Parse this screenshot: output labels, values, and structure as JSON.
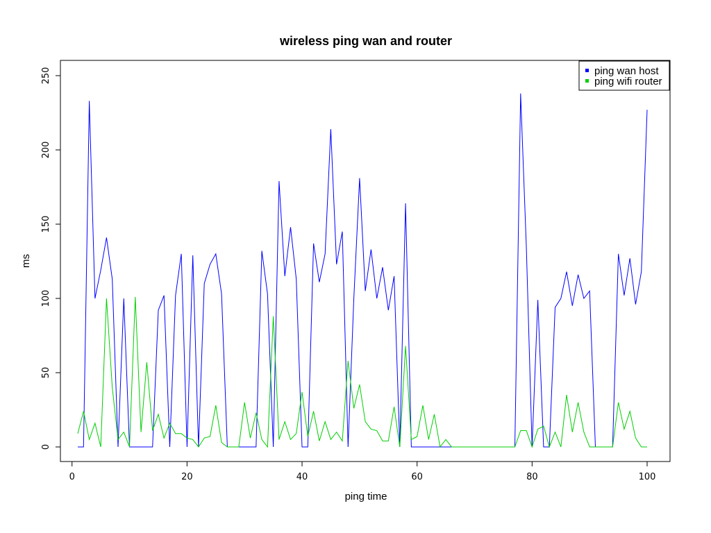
{
  "chart_data": {
    "type": "line",
    "title": "wireless ping wan and router",
    "xlabel": "ping time",
    "ylabel": "ms",
    "xlim": [
      1,
      100
    ],
    "ylim": [
      0,
      250
    ],
    "x_ticks": [
      0,
      20,
      40,
      60,
      80,
      100
    ],
    "y_ticks": [
      0,
      50,
      100,
      150,
      200,
      250
    ],
    "grid": false,
    "legend_position": "top-right",
    "x": [
      1,
      2,
      3,
      4,
      5,
      6,
      7,
      8,
      9,
      10,
      11,
      12,
      13,
      14,
      15,
      16,
      17,
      18,
      19,
      20,
      21,
      22,
      23,
      24,
      25,
      26,
      27,
      28,
      29,
      30,
      31,
      32,
      33,
      34,
      35,
      36,
      37,
      38,
      39,
      40,
      41,
      42,
      43,
      44,
      45,
      46,
      47,
      48,
      49,
      50,
      51,
      52,
      53,
      54,
      55,
      56,
      57,
      58,
      59,
      60,
      61,
      62,
      63,
      64,
      65,
      66,
      67,
      68,
      69,
      70,
      71,
      72,
      73,
      74,
      75,
      76,
      77,
      78,
      79,
      80,
      81,
      82,
      83,
      84,
      85,
      86,
      87,
      88,
      89,
      90,
      91,
      92,
      93,
      94,
      95,
      96,
      97,
      98,
      99,
      100
    ],
    "series": [
      {
        "name": "ping wan host",
        "color": "#0000ff",
        "values": [
          0,
          0,
          233,
          100,
          119,
          141,
          113,
          0,
          100,
          0,
          0,
          0,
          0,
          0,
          92,
          102,
          0,
          102,
          130,
          0,
          129,
          0,
          110,
          123,
          130,
          103,
          0,
          0,
          0,
          0,
          0,
          0,
          132,
          103,
          0,
          179,
          115,
          148,
          113,
          0,
          0,
          137,
          111,
          130,
          214,
          123,
          145,
          0,
          100,
          181,
          105,
          133,
          100,
          121,
          92,
          115,
          0,
          164,
          0,
          0,
          0,
          0,
          0,
          0,
          0,
          0,
          0,
          0,
          0,
          0,
          0,
          0,
          0,
          0,
          0,
          0,
          0,
          238,
          134,
          0,
          99,
          0,
          0,
          94,
          100,
          118,
          95,
          116,
          100,
          105,
          0,
          0,
          0,
          0,
          130,
          102,
          127,
          96,
          118,
          227
        ]
      },
      {
        "name": "ping wifi router",
        "color": "#00cd00",
        "values": [
          9,
          24,
          5,
          16,
          0,
          100,
          40,
          5,
          10,
          0,
          101,
          10,
          57,
          11,
          22,
          6,
          16,
          9,
          9,
          6,
          5,
          0,
          6,
          7,
          28,
          3,
          0,
          0,
          0,
          30,
          6,
          23,
          5,
          0,
          88,
          5,
          17,
          5,
          9,
          37,
          7,
          24,
          4,
          17,
          5,
          10,
          4,
          58,
          26,
          42,
          17,
          12,
          11,
          4,
          4,
          27,
          0,
          68,
          5,
          7,
          28,
          5,
          22,
          0,
          5,
          0,
          0,
          0,
          0,
          0,
          0,
          0,
          0,
          0,
          0,
          0,
          0,
          11,
          11,
          0,
          12,
          14,
          0,
          10,
          0,
          35,
          10,
          30,
          10,
          0,
          0,
          0,
          0,
          0,
          30,
          12,
          24,
          6,
          0,
          0
        ]
      }
    ]
  }
}
